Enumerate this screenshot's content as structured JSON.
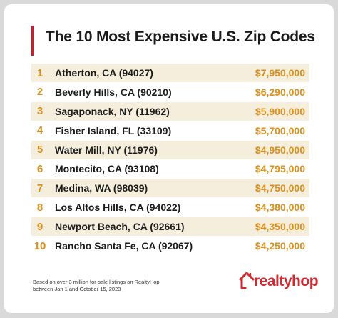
{
  "title": "The 10 Most Expensive U.S. Zip Codes",
  "footnote": {
    "line1": "Based on over 3 million for-sale listings on RealtyHop",
    "line2": "between Jan 1 and October 15, 2023"
  },
  "logo": {
    "text": "realtyhop"
  },
  "colors": {
    "accent": "#d9901c",
    "title_bar": "#c61f2b",
    "row_shade": "#f6eedc",
    "logo": "#d12930"
  },
  "chart_data": {
    "type": "table",
    "title": "The 10 Most Expensive U.S. Zip Codes",
    "columns": [
      "rank",
      "location",
      "price"
    ],
    "rows": [
      {
        "rank": "1",
        "location": "Atherton, CA (94027)",
        "price": "$7,950,000"
      },
      {
        "rank": "2",
        "location": "Beverly Hills, CA (90210)",
        "price": "$6,290,000"
      },
      {
        "rank": "3",
        "location": "Sagaponack, NY (11962)",
        "price": "$5,900,000"
      },
      {
        "rank": "4",
        "location": "Fisher Island, FL (33109)",
        "price": "$5,700,000"
      },
      {
        "rank": "5",
        "location": "Water Mill, NY (11976)",
        "price": "$4,950,000"
      },
      {
        "rank": "6",
        "location": "Montecito, CA (93108)",
        "price": "$4,795,000"
      },
      {
        "rank": "7",
        "location": "Medina, WA (98039)",
        "price": "$4,750,000"
      },
      {
        "rank": "8",
        "location": "Los Altos Hills, CA (94022)",
        "price": "$4,380,000"
      },
      {
        "rank": "9",
        "location": "Newport Beach, CA (92661)",
        "price": "$4,350,000"
      },
      {
        "rank": "10",
        "location": "Rancho Santa Fe, CA (92067)",
        "price": "$4,250,000"
      }
    ]
  }
}
